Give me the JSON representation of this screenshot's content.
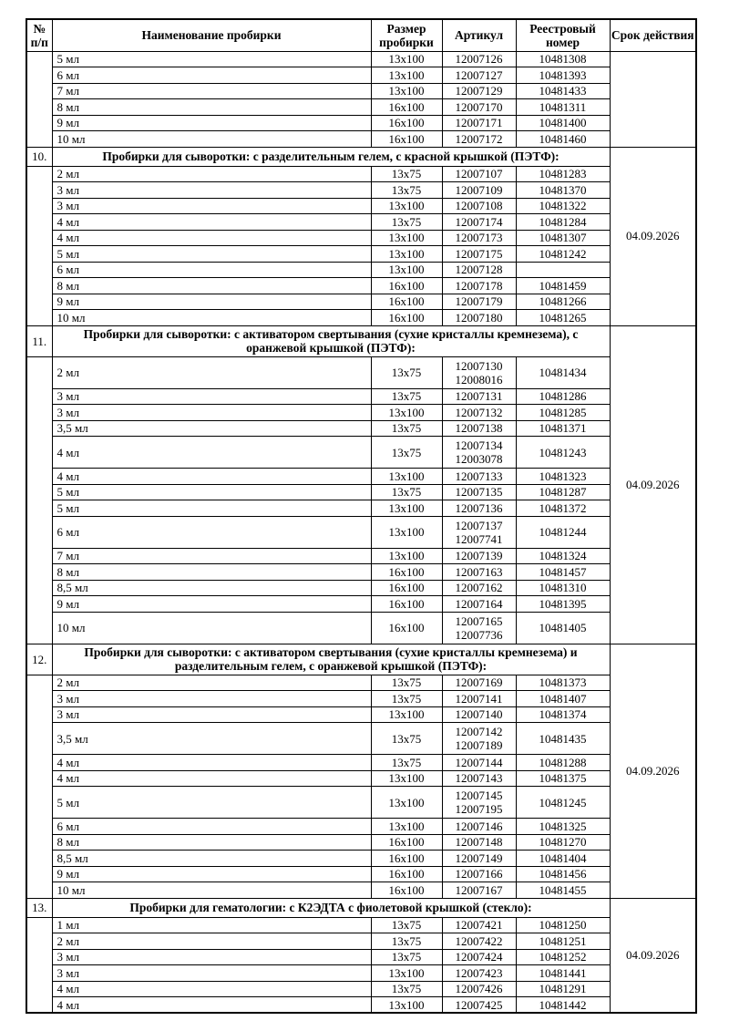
{
  "table": {
    "headers": [
      "№ п/п",
      "Наименование пробирки",
      "Размер пробирки",
      "Артикул",
      "Реестровый номер",
      "Срок действия"
    ],
    "sections": [
      {
        "number": "",
        "title": "",
        "validity": "",
        "rows": [
          {
            "name": "5 мл",
            "size": "13x100",
            "article": "12007126",
            "article2": "",
            "registry": "10481308"
          },
          {
            "name": "6 мл",
            "size": "13x100",
            "article": "12007127",
            "article2": "",
            "registry": "10481393"
          },
          {
            "name": "7 мл",
            "size": "13x100",
            "article": "12007129",
            "article2": "",
            "registry": "10481433"
          },
          {
            "name": "8 мл",
            "size": "16x100",
            "article": "12007170",
            "article2": "",
            "registry": "10481311"
          },
          {
            "name": "9 мл",
            "size": "16x100",
            "article": "12007171",
            "article2": "",
            "registry": "10481400"
          },
          {
            "name": "10 мл",
            "size": "16x100",
            "article": "12007172",
            "article2": "",
            "registry": "10481460"
          }
        ]
      },
      {
        "number": "10.",
        "title": "Пробирки для сыворотки: с разделительным гелем, с красной крышкой (ПЭТФ):",
        "validity": "04.09.2026",
        "rows": [
          {
            "name": "2 мл",
            "size": "13x75",
            "article": "12007107",
            "article2": "",
            "registry": "10481283"
          },
          {
            "name": "3 мл",
            "size": "13x75",
            "article": "12007109",
            "article2": "",
            "registry": "10481370"
          },
          {
            "name": "3 мл",
            "size": "13x100",
            "article": "12007108",
            "article2": "",
            "registry": "10481322"
          },
          {
            "name": "4 мл",
            "size": "13x75",
            "article": "12007174",
            "article2": "",
            "registry": "10481284"
          },
          {
            "name": "4 мл",
            "size": "13x100",
            "article": "12007173",
            "article2": "",
            "registry": "10481307"
          },
          {
            "name": "5 мл",
            "size": "13x100",
            "article": "12007175",
            "article2": "",
            "registry": "10481242"
          },
          {
            "name": "6 мл",
            "size": "13x100",
            "article": "12007128",
            "article2": "",
            "registry": ""
          },
          {
            "name": "8 мл",
            "size": "16x100",
            "article": "12007178",
            "article2": "",
            "registry": "10481459"
          },
          {
            "name": "9 мл",
            "size": "16x100",
            "article": "12007179",
            "article2": "",
            "registry": "10481266"
          },
          {
            "name": "10 мл",
            "size": "16x100",
            "article": "12007180",
            "article2": "",
            "registry": "10481265"
          }
        ]
      },
      {
        "number": "11.",
        "title": "Пробирки для сыворотки: с активатором свертывания (сухие кристаллы кремнезема), с оранжевой крышкой (ПЭТФ):",
        "validity": "04.09.2026",
        "rows": [
          {
            "name": "2 мл",
            "size": "13x75",
            "article": "12007130",
            "article2": "12008016",
            "registry": "10481434"
          },
          {
            "name": "3 мл",
            "size": "13x75",
            "article": "12007131",
            "article2": "",
            "registry": "10481286"
          },
          {
            "name": "3 мл",
            "size": "13x100",
            "article": "12007132",
            "article2": "",
            "registry": "10481285"
          },
          {
            "name": "3,5 мл",
            "size": "13x75",
            "article": "12007138",
            "article2": "",
            "registry": "10481371"
          },
          {
            "name": "4 мл",
            "size": "13x75",
            "article": "12007134",
            "article2": "12003078",
            "registry": "10481243"
          },
          {
            "name": "4 мл",
            "size": "13x100",
            "article": "12007133",
            "article2": "",
            "registry": "10481323"
          },
          {
            "name": "5 мл",
            "size": "13x75",
            "article": "12007135",
            "article2": "",
            "registry": "10481287"
          },
          {
            "name": "5 мл",
            "size": "13x100",
            "article": "12007136",
            "article2": "",
            "registry": "10481372"
          },
          {
            "name": "6 мл",
            "size": "13x100",
            "article": "12007137",
            "article2": "12007741",
            "registry": "10481244"
          },
          {
            "name": "7 мл",
            "size": "13x100",
            "article": "12007139",
            "article2": "",
            "registry": "10481324"
          },
          {
            "name": "8 мл",
            "size": "16x100",
            "article": "12007163",
            "article2": "",
            "registry": "10481457"
          },
          {
            "name": "8,5 мл",
            "size": "16x100",
            "article": "12007162",
            "article2": "",
            "registry": "10481310"
          },
          {
            "name": "9 мл",
            "size": "16x100",
            "article": "12007164",
            "article2": "",
            "registry": "10481395"
          },
          {
            "name": "10 мл",
            "size": "16x100",
            "article": "12007165",
            "article2": "12007736",
            "registry": "10481405"
          }
        ]
      },
      {
        "number": "12.",
        "title": "Пробирки для сыворотки: с активатором свертывания (сухие кристаллы кремнезема) и разделительным гелем, с оранжевой крышкой (ПЭТФ):",
        "validity": "04.09.2026",
        "rows": [
          {
            "name": "2 мл",
            "size": "13x75",
            "article": "12007169",
            "article2": "",
            "registry": "10481373"
          },
          {
            "name": "3 мл",
            "size": "13x75",
            "article": "12007141",
            "article2": "",
            "registry": "10481407"
          },
          {
            "name": "3 мл",
            "size": "13x100",
            "article": "12007140",
            "article2": "",
            "registry": "10481374"
          },
          {
            "name": "3,5 мл",
            "size": "13x75",
            "article": "12007142",
            "article2": "12007189",
            "registry": "10481435"
          },
          {
            "name": "4 мл",
            "size": "13x75",
            "article": "12007144",
            "article2": "",
            "registry": "10481288"
          },
          {
            "name": "4 мл",
            "size": "13x100",
            "article": "12007143",
            "article2": "",
            "registry": "10481375"
          },
          {
            "name": "5 мл",
            "size": "13x100",
            "article": "12007145",
            "article2": "12007195",
            "registry": "10481245"
          },
          {
            "name": "6 мл",
            "size": "13x100",
            "article": "12007146",
            "article2": "",
            "registry": "10481325"
          },
          {
            "name": "8 мл",
            "size": "16x100",
            "article": "12007148",
            "article2": "",
            "registry": "10481270"
          },
          {
            "name": "8,5 мл",
            "size": "16x100",
            "article": "12007149",
            "article2": "",
            "registry": "10481404"
          },
          {
            "name": "9 мл",
            "size": "16x100",
            "article": "12007166",
            "article2": "",
            "registry": "10481456"
          },
          {
            "name": "10 мл",
            "size": "16x100",
            "article": "12007167",
            "article2": "",
            "registry": "10481455"
          }
        ]
      },
      {
        "number": "13.",
        "title": "Пробирки для гематологии: с К2ЭДТА с фиолетовой крышкой (стекло):",
        "validity": "04.09.2026",
        "rows": [
          {
            "name": "1 мл",
            "size": "13x75",
            "article": "12007421",
            "article2": "",
            "registry": "10481250"
          },
          {
            "name": "2 мл",
            "size": "13x75",
            "article": "12007422",
            "article2": "",
            "registry": "10481251"
          },
          {
            "name": "3 мл",
            "size": "13x75",
            "article": "12007424",
            "article2": "",
            "registry": "10481252"
          },
          {
            "name": "3 мл",
            "size": "13x100",
            "article": "12007423",
            "article2": "",
            "registry": "10481441"
          },
          {
            "name": "4 мл",
            "size": "13x75",
            "article": "12007426",
            "article2": "",
            "registry": "10481291"
          },
          {
            "name": "4 мл",
            "size": "13x100",
            "article": "12007425",
            "article2": "",
            "registry": "10481442"
          }
        ]
      }
    ]
  }
}
